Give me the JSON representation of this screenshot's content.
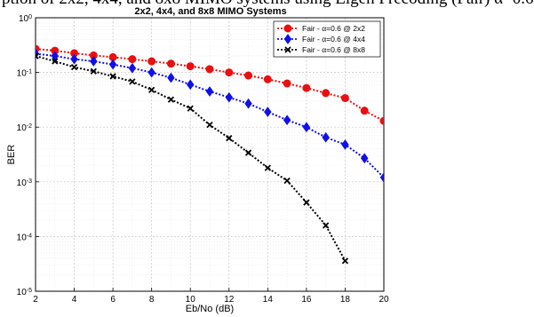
{
  "header_fragment": "ption of 2x2, 4x4, and 8x8 MIMO systems using Eigen Precoding (Fair) α=0.6",
  "chart_data": {
    "type": "line",
    "title": "2x2, 4x4, and 8x8 MIMO Systems",
    "xlabel": "Eb/No (dB)",
    "ylabel": "BER",
    "xlim": [
      2,
      20
    ],
    "ylim": [
      1e-05,
      1
    ],
    "yscale": "log",
    "grid": true,
    "legend_position": "top-right",
    "x_ticks": [
      2,
      4,
      6,
      8,
      10,
      12,
      14,
      16,
      18,
      20
    ],
    "y_ticks": [
      1e-05,
      0.0001,
      0.001,
      0.01,
      0.1,
      1
    ],
    "series": [
      {
        "name": "Fair - α=0.6 @ 2x2",
        "color": "#e81010",
        "marker": "circle",
        "x": [
          2,
          3,
          4,
          5,
          6,
          7,
          8,
          9,
          10,
          11,
          12,
          13,
          14,
          15,
          16,
          17,
          18,
          19,
          20
        ],
        "y": [
          0.27,
          0.25,
          0.225,
          0.205,
          0.19,
          0.175,
          0.16,
          0.145,
          0.13,
          0.115,
          0.1,
          0.088,
          0.075,
          0.063,
          0.052,
          0.042,
          0.034,
          0.02,
          0.013
        ]
      },
      {
        "name": "Fair - α=0.6 @ 4x4",
        "color": "#1010e8",
        "marker": "diamond",
        "x": [
          2,
          3,
          4,
          5,
          6,
          7,
          8,
          9,
          10,
          11,
          12,
          13,
          14,
          15,
          16,
          17,
          18,
          19,
          20
        ],
        "y": [
          0.22,
          0.2,
          0.175,
          0.16,
          0.14,
          0.12,
          0.1,
          0.08,
          0.06,
          0.045,
          0.035,
          0.027,
          0.019,
          0.0135,
          0.01,
          0.0065,
          0.0048,
          0.0027,
          0.0012
        ]
      },
      {
        "name": "Fair - α=0.6 @ 8x8",
        "color": "#000000",
        "marker": "x",
        "x": [
          2,
          3,
          4,
          5,
          6,
          7,
          8,
          9,
          10,
          11,
          12,
          13,
          14,
          15,
          16,
          17,
          18
        ],
        "y": [
          0.2,
          0.16,
          0.125,
          0.105,
          0.085,
          0.068,
          0.048,
          0.032,
          0.022,
          0.011,
          0.0063,
          0.0034,
          0.0018,
          0.00105,
          0.00042,
          0.00016,
          3.6e-05
        ]
      }
    ]
  }
}
